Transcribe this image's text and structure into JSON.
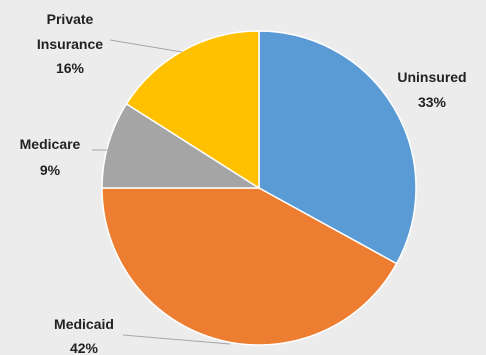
{
  "chart_data": {
    "type": "pie",
    "title": "",
    "slices": [
      {
        "name": "Uninsured",
        "value": 33,
        "label_lines": [
          "Uninsured",
          "33%"
        ],
        "color": "#5b9bd5"
      },
      {
        "name": "Medicaid",
        "value": 42,
        "label_lines": [
          "Medicaid",
          "42%"
        ],
        "color": "#ed7d31"
      },
      {
        "name": "Medicare",
        "value": 9,
        "label_lines": [
          "Medicare",
          "9%"
        ],
        "color": "#a5a5a5"
      },
      {
        "name": "Private Insurance",
        "value": 16,
        "label_lines": [
          "Private",
          "Insurance",
          "16%"
        ],
        "color": "#ffc000"
      }
    ],
    "start": "12 o'clock",
    "direction": "clockwise",
    "legend": "none",
    "data_labels": "outside"
  },
  "colors": {
    "background": "#ececec",
    "slice_border": "#ffffff",
    "leader_line": "#a6a6a6",
    "label_text": "#222222"
  }
}
